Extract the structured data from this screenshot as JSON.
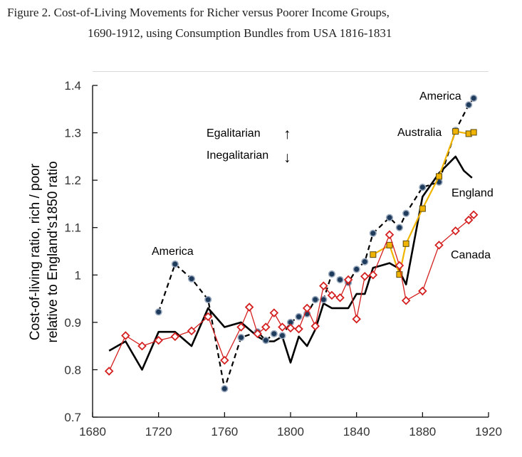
{
  "figure": {
    "caption_line1": "Figure 2. Cost-of-Living Movements for Richer versus Poorer Income Groups,",
    "caption_line2": "1690-1912, using Consumption Bundles from USA 1816-1831"
  },
  "chart_data": {
    "type": "line",
    "ylabel_line1": "Cost-of-living ratio, rich / poor",
    "ylabel_line2": "relative to England's1850 ratio",
    "xlabel": "",
    "xlim": [
      1680,
      1920
    ],
    "ylim": [
      0.7,
      1.4
    ],
    "x_ticks": [
      1680,
      1720,
      1760,
      1800,
      1840,
      1880,
      1920
    ],
    "y_ticks": [
      0.7,
      0.8,
      0.9,
      1.0,
      1.1,
      1.2,
      1.3,
      1.4
    ],
    "y_tick_labels": [
      "0.7",
      "0.8",
      "0.9",
      "1",
      "1.1",
      "1.2",
      "1.3",
      "1.4"
    ],
    "grid": false,
    "annotations": {
      "america_top": "America",
      "america_left": "America",
      "australia": "Australia",
      "england": "England",
      "canada": "Canada",
      "egalitarian": "Egalitarian",
      "inegalitarian": "Inegalitarian",
      "up_arrow": "↑",
      "down_arrow": "↓"
    },
    "series": [
      {
        "name": "England",
        "color": "#000000",
        "style": "solid",
        "marker": "none",
        "x": [
          1690,
          1700,
          1710,
          1720,
          1730,
          1740,
          1750,
          1760,
          1770,
          1780,
          1785,
          1790,
          1795,
          1800,
          1805,
          1810,
          1815,
          1820,
          1825,
          1830,
          1835,
          1840,
          1845,
          1850,
          1855,
          1860,
          1865,
          1870,
          1880,
          1890,
          1900,
          1905,
          1910
        ],
        "y": [
          0.84,
          0.86,
          0.8,
          0.88,
          0.88,
          0.85,
          0.93,
          0.89,
          0.9,
          0.87,
          0.86,
          0.86,
          0.87,
          0.815,
          0.87,
          0.85,
          0.885,
          0.94,
          0.93,
          0.93,
          0.93,
          0.96,
          0.96,
          1.015,
          1.02,
          1.025,
          1.015,
          0.98,
          1.165,
          1.215,
          1.25,
          1.22,
          1.205
        ]
      },
      {
        "name": "America",
        "color": "#000000",
        "style": "dashed",
        "marker": "circle",
        "marker_fill": "#1f3b5c",
        "x": [
          1720,
          1730,
          1740,
          1750,
          1760,
          1770,
          1780,
          1785,
          1790,
          1795,
          1800,
          1805,
          1810,
          1815,
          1820,
          1825,
          1830,
          1835,
          1840,
          1845,
          1850,
          1860,
          1866,
          1870,
          1880,
          1890,
          1900,
          1908,
          1911
        ],
        "y": [
          0.922,
          1.023,
          0.992,
          0.948,
          0.76,
          0.868,
          0.88,
          0.862,
          0.876,
          0.872,
          0.9,
          0.912,
          0.918,
          0.948,
          0.948,
          1.002,
          0.99,
          0.984,
          1.012,
          1.028,
          1.088,
          1.121,
          1.1,
          1.13,
          1.185,
          1.196,
          1.305,
          1.359,
          1.373
        ]
      },
      {
        "name": "Australia",
        "color": "#f0b400",
        "style": "solid",
        "marker": "square",
        "marker_fill": "#f0b400",
        "x": [
          1850,
          1860,
          1866,
          1870,
          1880,
          1890,
          1900,
          1908,
          1911
        ],
        "y": [
          1.043,
          1.063,
          1.001,
          1.066,
          1.14,
          1.208,
          1.303,
          1.298,
          1.301
        ]
      },
      {
        "name": "Canada",
        "color": "#d42020",
        "style": "solid",
        "marker": "diamond",
        "marker_fill": "#ffffff",
        "x": [
          1690,
          1700,
          1710,
          1720,
          1730,
          1740,
          1750,
          1760,
          1770,
          1775,
          1780,
          1785,
          1790,
          1795,
          1800,
          1805,
          1810,
          1815,
          1820,
          1825,
          1830,
          1835,
          1840,
          1845,
          1850,
          1860,
          1866,
          1870,
          1880,
          1890,
          1900,
          1908,
          1911
        ],
        "y": [
          0.797,
          0.872,
          0.85,
          0.862,
          0.87,
          0.882,
          0.912,
          0.82,
          0.89,
          0.932,
          0.876,
          0.89,
          0.92,
          0.89,
          0.888,
          0.886,
          0.93,
          0.892,
          0.977,
          0.957,
          0.952,
          0.99,
          0.907,
          0.997,
          1.0,
          1.085,
          1.02,
          0.946,
          0.966,
          1.063,
          1.093,
          1.116,
          1.127
        ]
      }
    ]
  }
}
